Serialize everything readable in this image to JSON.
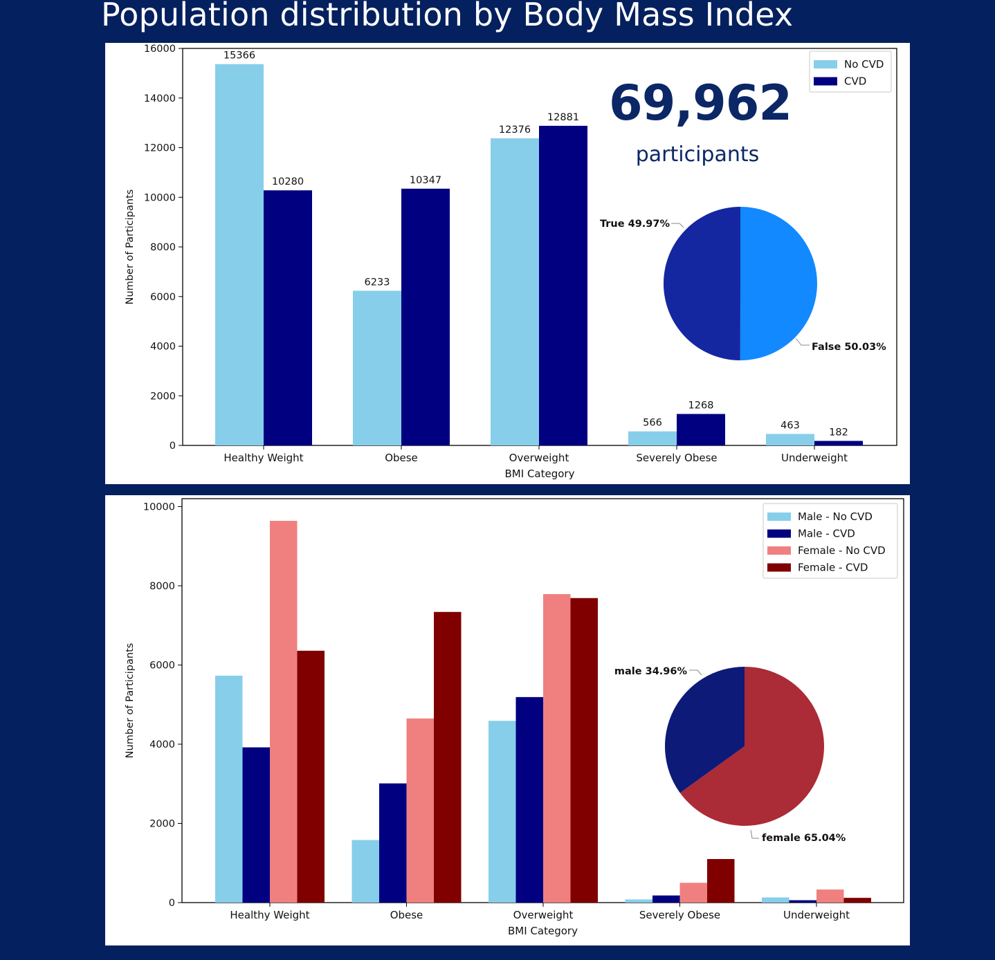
{
  "title": "Population distribution by Body Mass Index",
  "colors": {
    "background": "#05205e",
    "no_cvd": "#87ceeb",
    "cvd": "#000080",
    "female_no_cvd": "#f08080",
    "female_cvd": "#800000",
    "pie_true": "#1427a0",
    "pie_false": "#1289fe",
    "pie_male": "#0e1a78",
    "pie_female": "#ab2b36"
  },
  "top_panel": {
    "total_value": "69,962",
    "total_caption": "participants"
  },
  "chart_data": [
    {
      "type": "bar",
      "categories": [
        "Healthy Weight",
        "Obese",
        "Overweight",
        "Severely Obese",
        "Underweight"
      ],
      "series": [
        {
          "name": "No CVD",
          "values": [
            15366,
            6233,
            12376,
            566,
            463
          ]
        },
        {
          "name": "CVD",
          "values": [
            10280,
            10347,
            12881,
            1268,
            182
          ]
        }
      ],
      "data_labels": [
        [
          "15366",
          "6233",
          "12376",
          "566",
          "463"
        ],
        [
          "10280",
          "10347",
          "12881",
          "1268",
          "182"
        ]
      ],
      "xlabel": "BMI Category",
      "ylabel": "Number of Participants",
      "ylim": [
        0,
        16000
      ],
      "yticks": [
        0,
        2000,
        4000,
        6000,
        8000,
        10000,
        12000,
        14000,
        16000
      ],
      "grid": false,
      "legend_position": "top-right"
    },
    {
      "type": "pie",
      "labels": [
        "True",
        "False"
      ],
      "values": [
        49.97,
        50.03
      ],
      "label_texts": [
        "True 49.97%",
        "False 50.03%"
      ],
      "inset_of": "chart 1",
      "position": "right"
    },
    {
      "type": "bar",
      "categories": [
        "Healthy Weight",
        "Obese",
        "Overweight",
        "Severely Obese",
        "Underweight"
      ],
      "series": [
        {
          "name": "Male - No CVD",
          "values": [
            5730,
            1580,
            4590,
            80,
            130
          ]
        },
        {
          "name": "Male - CVD",
          "values": [
            3920,
            3010,
            5190,
            180,
            60
          ]
        },
        {
          "name": "Female - No CVD",
          "values": [
            9640,
            4650,
            7790,
            500,
            330
          ]
        },
        {
          "name": "Female - CVD",
          "values": [
            6360,
            7340,
            7690,
            1100,
            120
          ]
        }
      ],
      "xlabel": "BMI Category",
      "ylabel": "Number of Participants",
      "ylim": [
        0,
        10200
      ],
      "yticks": [
        0,
        2000,
        4000,
        6000,
        8000,
        10000
      ],
      "grid": false,
      "legend_position": "top-right"
    },
    {
      "type": "pie",
      "labels": [
        "male",
        "female"
      ],
      "values": [
        34.96,
        65.04
      ],
      "label_texts": [
        "male 34.96%",
        "female 65.04%"
      ],
      "inset_of": "chart 3",
      "position": "right"
    }
  ]
}
